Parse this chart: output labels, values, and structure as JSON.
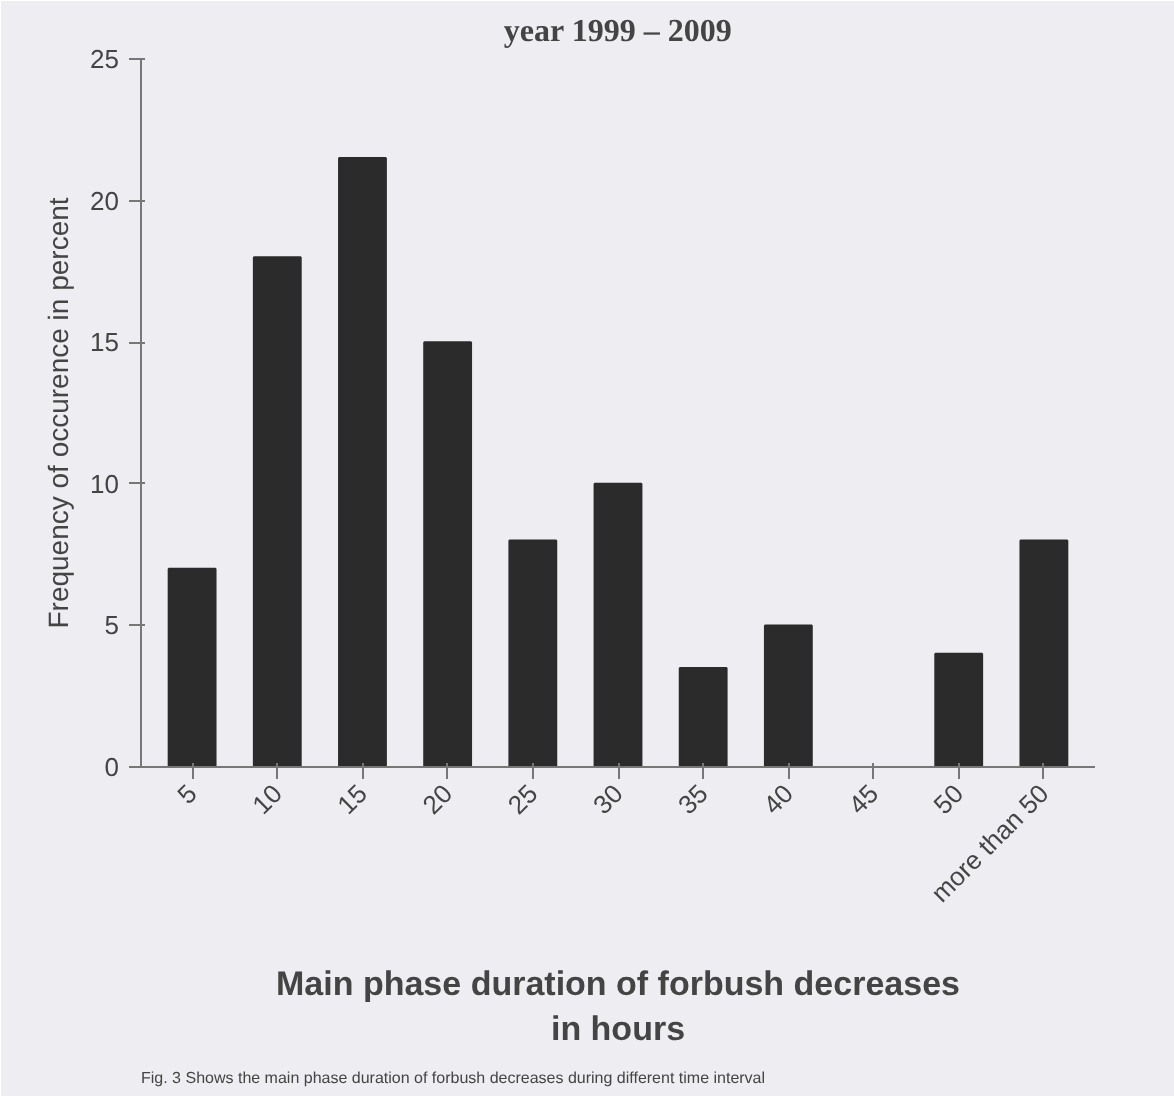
{
  "chart_data": {
    "type": "bar",
    "title": "year 1999 – 2009",
    "xlabel": "Main phase duration of forbush decreases in hours",
    "ylabel": "Frequency of occurence in percent",
    "categories": [
      "5",
      "10",
      "15",
      "20",
      "25",
      "30",
      "35",
      "40",
      "45",
      "50",
      "more than 50"
    ],
    "values": [
      7,
      18,
      21.5,
      15,
      8,
      10,
      3.5,
      5,
      0,
      4,
      8
    ],
    "color": "#2b2b2b",
    "ylim": [
      0,
      25
    ],
    "yticks": [
      0,
      5,
      10,
      15,
      20,
      25
    ],
    "grid": false,
    "annotations": [
      "Fig.   3 Shows the main phase duration of forbush decreases during different time interval"
    ]
  }
}
